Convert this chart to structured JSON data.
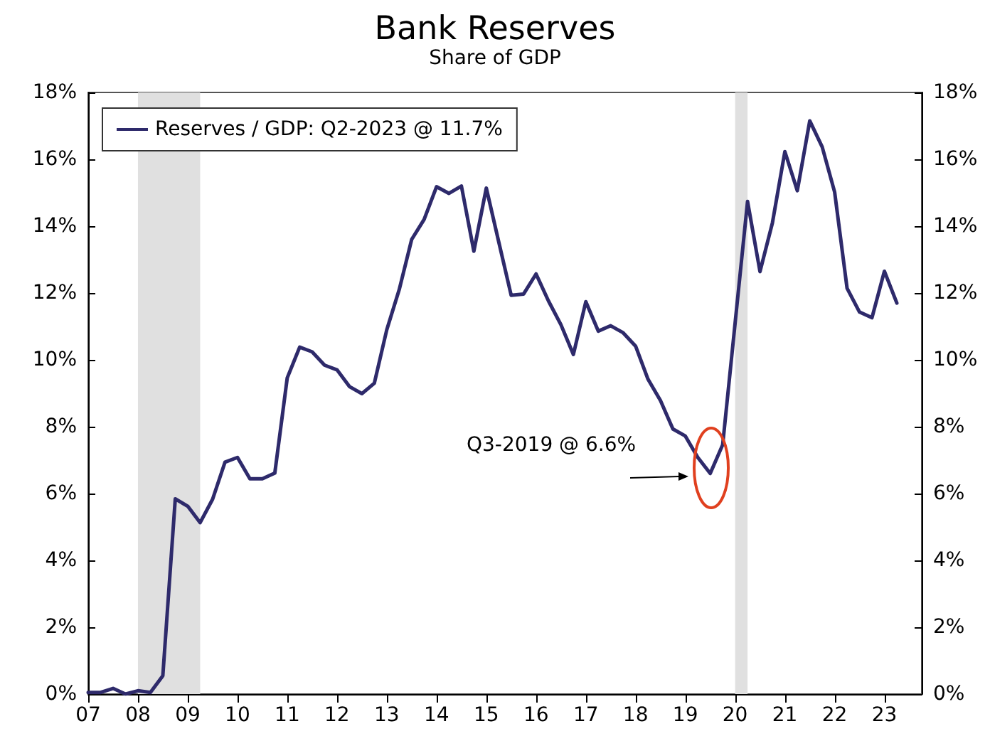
{
  "chart_data": {
    "type": "line",
    "title": "Bank Reserves",
    "subtitle": "Share of GDP",
    "x": [
      2007,
      2007.25,
      2007.5,
      2007.75,
      2008,
      2008.25,
      2008.5,
      2008.75,
      2009,
      2009.25,
      2009.5,
      2009.75,
      2010,
      2010.25,
      2010.5,
      2010.75,
      2011,
      2011.25,
      2011.5,
      2011.75,
      2012,
      2012.25,
      2012.5,
      2012.75,
      2013,
      2013.25,
      2013.5,
      2013.75,
      2014,
      2014.25,
      2014.5,
      2014.75,
      2015,
      2015.25,
      2015.5,
      2015.75,
      2016,
      2016.25,
      2016.5,
      2016.75,
      2017,
      2017.25,
      2017.5,
      2017.75,
      2018,
      2018.25,
      2018.5,
      2018.75,
      2019,
      2019.25,
      2019.5,
      2019.75,
      2020,
      2020.25,
      2020.5,
      2020.75,
      2021,
      2021.25,
      2021.5,
      2021.75,
      2022,
      2022.25,
      2022.5,
      2022.75,
      2023,
      2023.25
    ],
    "series": [
      {
        "name": "Reserves / GDP: Q2-2023 @ 11.7%",
        "color": "#2e2a6b",
        "values": [
          0.05,
          0.05,
          0.17,
          0.0,
          0.1,
          0.05,
          0.55,
          5.84,
          5.62,
          5.13,
          5.83,
          6.94,
          7.08,
          6.44,
          6.44,
          6.61,
          9.46,
          10.38,
          10.24,
          9.84,
          9.7,
          9.2,
          8.99,
          9.3,
          10.9,
          12.1,
          13.6,
          14.2,
          15.18,
          14.98,
          15.2,
          13.25,
          15.14,
          13.53,
          11.93,
          11.97,
          12.57,
          11.76,
          11.05,
          10.16,
          11.74,
          10.86,
          11.02,
          10.81,
          10.41,
          9.42,
          8.78,
          7.93,
          7.72,
          7.08,
          6.6,
          7.46,
          11.1,
          14.74,
          12.64,
          14.1,
          16.23,
          15.06,
          17.15,
          16.37,
          15.02,
          12.14,
          11.43,
          11.26,
          12.65,
          11.7
        ]
      }
    ],
    "xlim": [
      2007,
      2023.75
    ],
    "xticks": [
      {
        "value": 2007,
        "label": "07"
      },
      {
        "value": 2008,
        "label": "08"
      },
      {
        "value": 2009,
        "label": "09"
      },
      {
        "value": 2010,
        "label": "10"
      },
      {
        "value": 2011,
        "label": "11"
      },
      {
        "value": 2012,
        "label": "12"
      },
      {
        "value": 2013,
        "label": "13"
      },
      {
        "value": 2014,
        "label": "14"
      },
      {
        "value": 2015,
        "label": "15"
      },
      {
        "value": 2016,
        "label": "16"
      },
      {
        "value": 2017,
        "label": "17"
      },
      {
        "value": 2018,
        "label": "18"
      },
      {
        "value": 2019,
        "label": "19"
      },
      {
        "value": 2020,
        "label": "20"
      },
      {
        "value": 2021,
        "label": "21"
      },
      {
        "value": 2022,
        "label": "22"
      },
      {
        "value": 2023,
        "label": "23"
      }
    ],
    "ylim": [
      0,
      18
    ],
    "yticks": [
      {
        "value": 0,
        "label": "0%"
      },
      {
        "value": 2,
        "label": "2%"
      },
      {
        "value": 4,
        "label": "4%"
      },
      {
        "value": 6,
        "label": "6%"
      },
      {
        "value": 8,
        "label": "8%"
      },
      {
        "value": 10,
        "label": "10%"
      },
      {
        "value": 12,
        "label": "12%"
      },
      {
        "value": 14,
        "label": "14%"
      },
      {
        "value": 16,
        "label": "16%"
      },
      {
        "value": 18,
        "label": "18%"
      }
    ],
    "y2lim": [
      0,
      18
    ],
    "y2ticks": [
      {
        "value": 0,
        "label": "0%"
      },
      {
        "value": 2,
        "label": "2%"
      },
      {
        "value": 4,
        "label": "4%"
      },
      {
        "value": 6,
        "label": "6%"
      },
      {
        "value": 8,
        "label": "8%"
      },
      {
        "value": 10,
        "label": "10%"
      },
      {
        "value": 12,
        "label": "12%"
      },
      {
        "value": 14,
        "label": "14%"
      },
      {
        "value": 16,
        "label": "16%"
      },
      {
        "value": 18,
        "label": "18%"
      }
    ],
    "bands": [
      {
        "axis": "x",
        "from": 2008,
        "to": 2009.25,
        "color": "#e0e0e0"
      },
      {
        "axis": "x",
        "from": 2020,
        "to": 2020.25,
        "color": "#e0e0e0"
      }
    ],
    "annotations": [
      "Q3-2019 @ 6.6%"
    ],
    "legend": "top left",
    "grid": false,
    "marker": "none",
    "line_style": "solid"
  }
}
